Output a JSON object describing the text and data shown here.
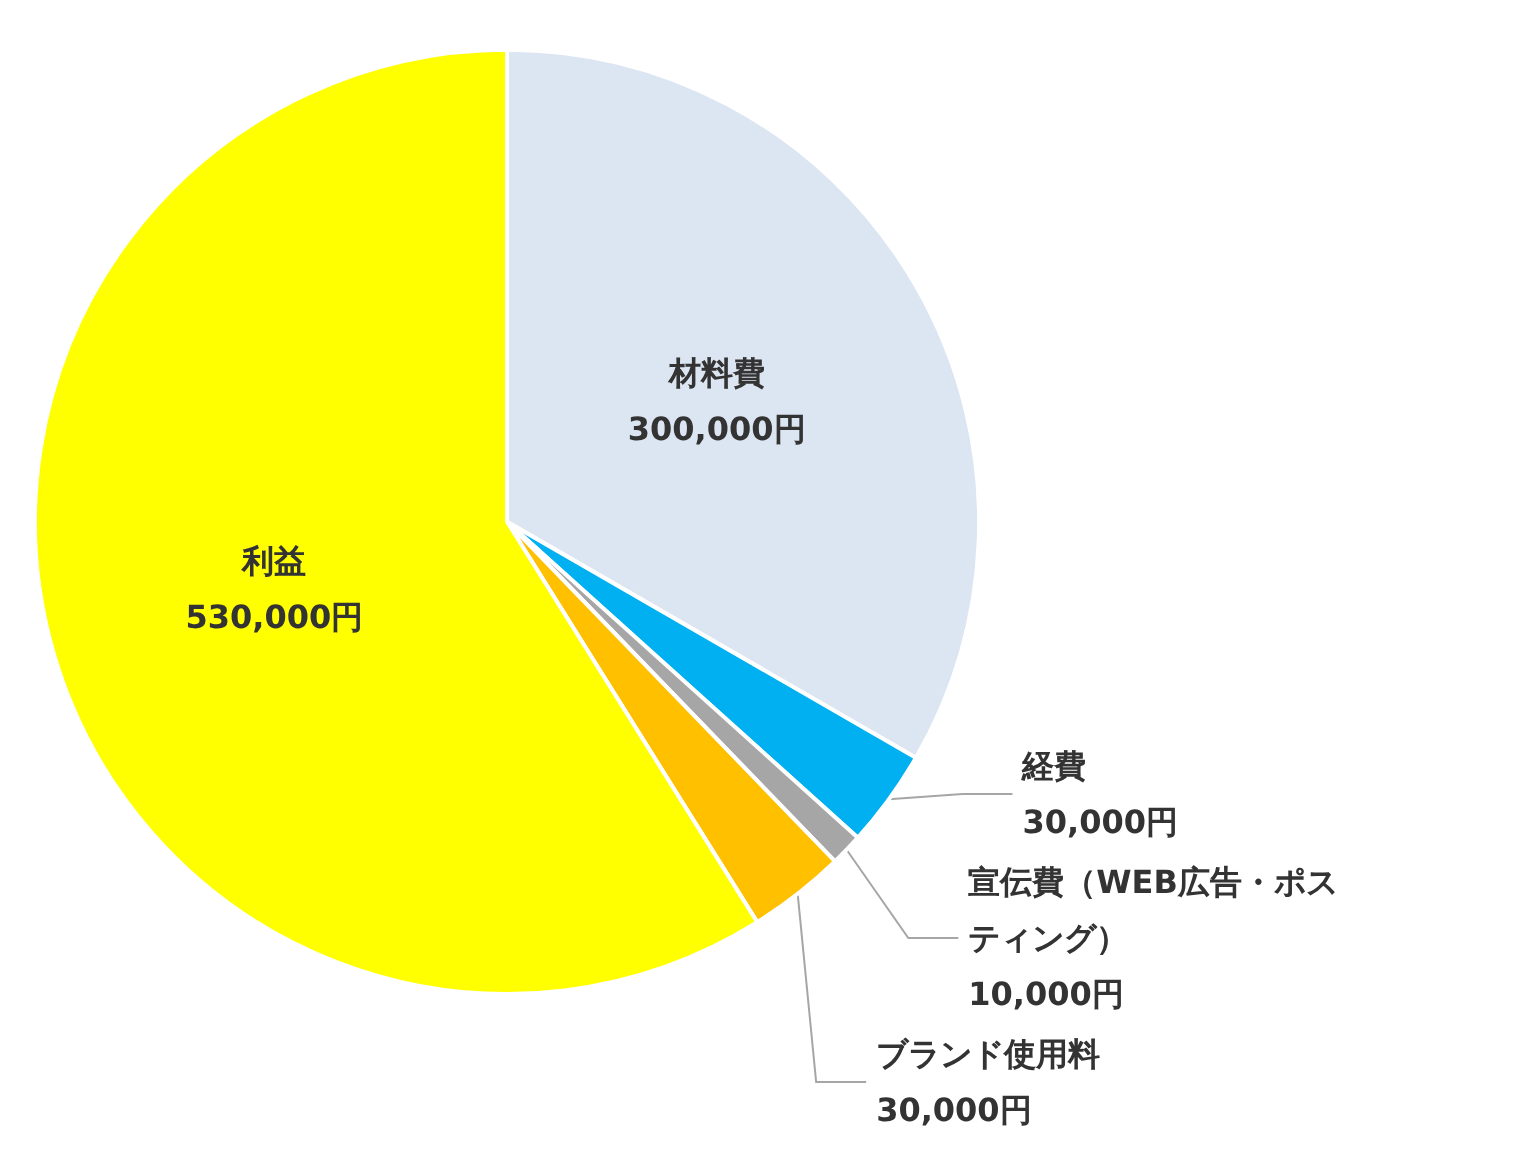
{
  "chart_data": {
    "type": "pie",
    "categories": [
      "材料費",
      "経費",
      "宣伝費（WEB広告・ポスティング）",
      "ブランド使用料",
      "利益"
    ],
    "values": [
      300000,
      30000,
      10000,
      30000,
      530000
    ],
    "colors": [
      "#dce6f2",
      "#00b0f0",
      "#a6a6a6",
      "#ffc000",
      "#ffff00"
    ],
    "value_labels": [
      "300,000円",
      "30,000円",
      "10,000円",
      "30,000円",
      "530,000円"
    ],
    "legend": false
  }
}
